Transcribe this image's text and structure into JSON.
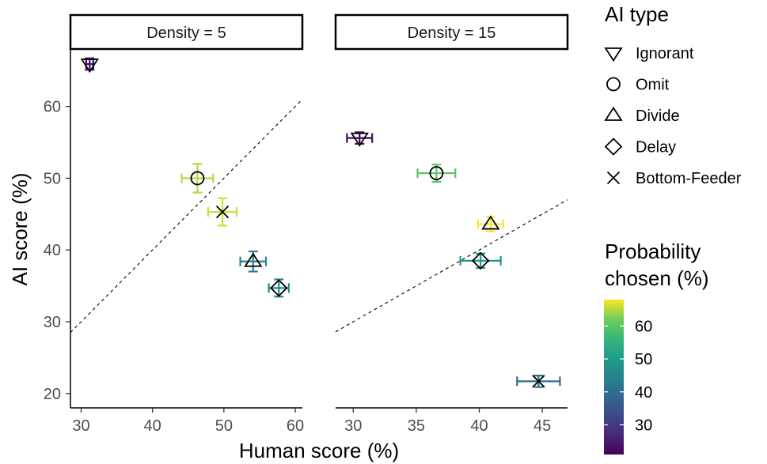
{
  "chart_data": {
    "type": "scatter",
    "xlabel": "Human score (%)",
    "ylabel": "AI score (%)",
    "ylim": [
      18,
      68
    ],
    "y_ticks": [
      20,
      30,
      40,
      50,
      60
    ],
    "grid": false,
    "reference_line": "dashed identity line (y = x)",
    "panels": [
      {
        "label": "Density = 5",
        "xlim": [
          28.5,
          61
        ],
        "x_ticks": [
          30,
          40,
          50,
          60
        ],
        "points": [
          {
            "type": "Ignorant",
            "x": 31.2,
            "y": 65.9,
            "x_err": 0.5,
            "y_err": 0.8,
            "prob": 22
          },
          {
            "type": "Omit",
            "x": 46.3,
            "y": 50.0,
            "x_err": 2.2,
            "y_err": 2.0,
            "prob": 65
          },
          {
            "type": "Bottom-Feeder",
            "x": 49.8,
            "y": 45.3,
            "x_err": 2.0,
            "y_err": 1.9,
            "prob": 66
          },
          {
            "type": "Divide",
            "x": 54.1,
            "y": 38.4,
            "x_err": 1.8,
            "y_err": 1.4,
            "prob": 44
          },
          {
            "type": "Delay",
            "x": 57.7,
            "y": 34.7,
            "x_err": 1.4,
            "y_err": 1.2,
            "prob": 47
          }
        ]
      },
      {
        "label": "Density = 15",
        "xlim": [
          28.6,
          47.0
        ],
        "x_ticks": [
          30,
          35,
          40,
          45
        ],
        "points": [
          {
            "type": "Ignorant",
            "x": 30.5,
            "y": 55.6,
            "x_err": 1.0,
            "y_err": 0.8,
            "prob": 22
          },
          {
            "type": "Omit",
            "x": 36.6,
            "y": 50.7,
            "x_err": 1.5,
            "y_err": 1.2,
            "prob": 60
          },
          {
            "type": "Divide",
            "x": 40.9,
            "y": 43.6,
            "x_err": 1.0,
            "y_err": 1.0,
            "prob": 68
          },
          {
            "type": "Delay",
            "x": 40.1,
            "y": 38.5,
            "x_err": 1.6,
            "y_err": 1.0,
            "prob": 49
          },
          {
            "type": "Bottom-Feeder",
            "x": 44.7,
            "y": 21.7,
            "x_err": 1.7,
            "y_err": 0.8,
            "prob": 40
          }
        ]
      }
    ],
    "legend_shape": {
      "title": "AI type",
      "items": [
        "Ignorant",
        "Omit",
        "Divide",
        "Delay",
        "Bottom-Feeder"
      ],
      "placement": "right"
    },
    "legend_color": {
      "title_line1": "Probability",
      "title_line2": "chosen (%)",
      "ticks": [
        30,
        40,
        50,
        60
      ],
      "range": [
        21,
        68
      ],
      "placement": "right"
    }
  }
}
